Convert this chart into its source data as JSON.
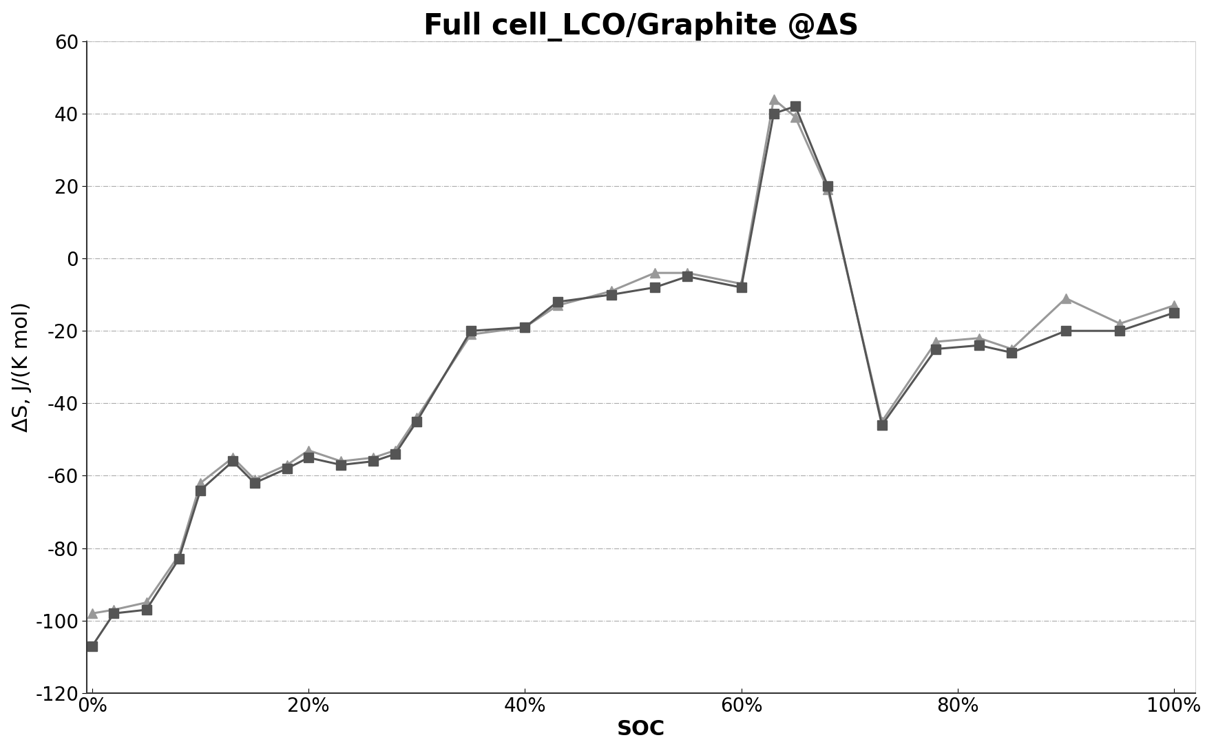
{
  "title": "Full cell_LCO/Graphite @ΔS",
  "xlabel": "SOC",
  "ylabel": "ΔS, J/(K mol)",
  "ylim": [
    -120,
    60
  ],
  "yticks": [
    -120,
    -100,
    -80,
    -60,
    -40,
    -20,
    0,
    20,
    40,
    60
  ],
  "xlim": [
    0.0,
    1.0
  ],
  "xticks": [
    0.0,
    0.2,
    0.4,
    0.6,
    0.8,
    1.0
  ],
  "xticklabels": [
    "0%",
    "20%",
    "40%",
    "60%",
    "80%",
    "100%"
  ],
  "series1_color": "#555555",
  "series2_color": "#999999",
  "series1_marker": "s",
  "series2_marker": "^",
  "series1_x": [
    0.0,
    0.02,
    0.05,
    0.08,
    0.1,
    0.13,
    0.15,
    0.18,
    0.2,
    0.23,
    0.26,
    0.28,
    0.3,
    0.35,
    0.4,
    0.43,
    0.48,
    0.52,
    0.55,
    0.6,
    0.63,
    0.65,
    0.68,
    0.73,
    0.78,
    0.82,
    0.85,
    0.9,
    0.95,
    1.0
  ],
  "series1_y": [
    -107,
    -98,
    -97,
    -83,
    -64,
    -56,
    -62,
    -58,
    -55,
    -57,
    -56,
    -54,
    -45,
    -20,
    -19,
    -12,
    -10,
    -8,
    -5,
    -8,
    40,
    42,
    20,
    -46,
    -25,
    -24,
    -26,
    -20,
    -20,
    -15
  ],
  "series2_x": [
    0.0,
    0.02,
    0.05,
    0.08,
    0.1,
    0.13,
    0.15,
    0.18,
    0.2,
    0.23,
    0.26,
    0.28,
    0.3,
    0.35,
    0.4,
    0.43,
    0.48,
    0.52,
    0.55,
    0.6,
    0.63,
    0.65,
    0.68,
    0.73,
    0.78,
    0.82,
    0.85,
    0.9,
    0.95,
    1.0
  ],
  "series2_y": [
    -98,
    -97,
    -95,
    -82,
    -62,
    -55,
    -61,
    -57,
    -53,
    -56,
    -55,
    -53,
    -44,
    -21,
    -19,
    -13,
    -9,
    -4,
    -4,
    -7,
    44,
    39,
    19,
    -45,
    -23,
    -22,
    -25,
    -11,
    -18,
    -13
  ],
  "background_color": "#ffffff",
  "grid_color": "#aaaaaa",
  "title_fontsize": 30,
  "axis_fontsize": 22,
  "tick_fontsize": 20,
  "linewidth": 2.2,
  "markersize": 10
}
